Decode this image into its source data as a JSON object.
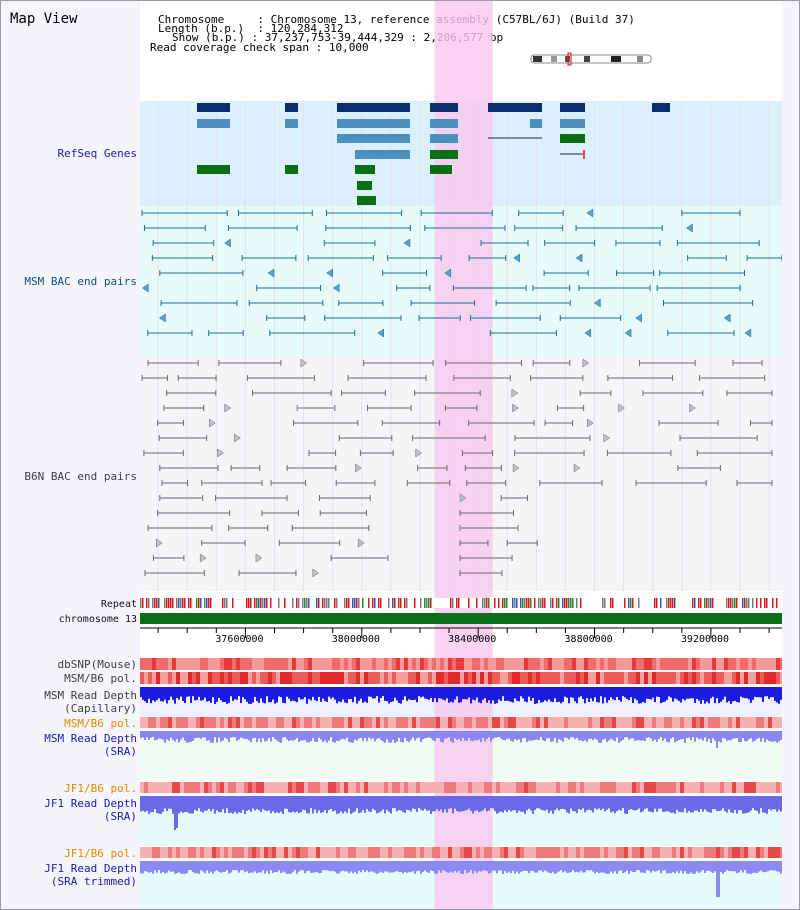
{
  "title": "Map View",
  "header": {
    "chromosome_label": "Chromosome",
    "chromosome_value": "Chromosome 13, reference assembly (C57BL/6J) (Build 37)",
    "length_label": "Length (b.p.)",
    "length_value": "120,284,312",
    "show_label": "Show (b.p.)",
    "show_value": "37,237,753-39,444,329 : 2,206,577 bp",
    "coverage_label": "Read coverage check span",
    "coverage_value": "10,000"
  },
  "tracks": {
    "refseq": "RefSeq Genes",
    "msm_bac": "MSM BAC end pairs",
    "b6n_bac": "B6N BAC end pairs",
    "repeat": "Repeat",
    "chromosome": "chromosome 13",
    "dbsnp": "dbSNP(Mouse)",
    "msm_b6_pol_1": "MSM/B6 pol.",
    "msm_read_depth_cap": "MSM Read Depth\n(Capillary)",
    "msm_b6_pol_2": "MSM/B6 pol.",
    "msm_read_depth_sra": "MSM Read Depth\n(SRA)",
    "jf1_b6_pol_1": "JF1/B6 pol.",
    "jf1_read_depth_sra": "JF1 Read Depth\n(SRA)",
    "jf1_b6_pol_2": "JF1/B6 pol.",
    "jf1_read_depth_trim": "JF1 Read Depth\n(SRA trimmed)"
  },
  "axis": {
    "ticks": [
      "37600000",
      "38000000",
      "38400000",
      "38800000",
      "39200000"
    ],
    "start_bp": 37237753,
    "end_bp": 39444329
  },
  "highlight": {
    "start_bp": 38250000,
    "end_bp": 38450000
  },
  "colors": {
    "refseq_bg": "#dcf0fb",
    "msm_bg": "#e8fbfb",
    "b6n_bg": "#f5f5f7",
    "highlight": "#f8c8ee",
    "chromosome_bar": "#0a6e14",
    "gene_dark": "#0b2d6b",
    "gene_mid": "#4a8fbf",
    "gene_green": "#0a6e14",
    "msm_line": "#1d6f93",
    "b6n_line": "#6a6a70"
  }
}
